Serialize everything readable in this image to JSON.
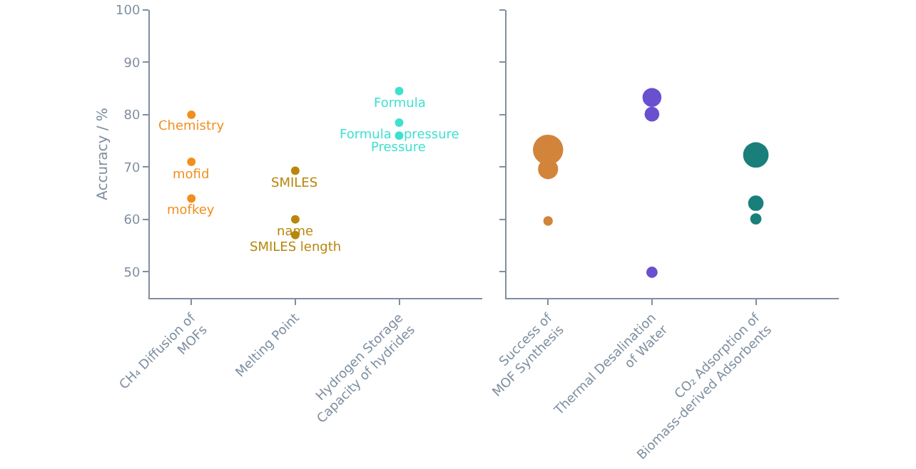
{
  "chart_data": [
    {
      "type": "scatter",
      "ylabel": "Accuracy / %",
      "categories": [
        "CH₄ Diffusion of\nMOFs",
        "Melting Point",
        "Hydrogen Storage\nCapacity of hydrides"
      ],
      "ylim": [
        45,
        100
      ],
      "yticks": [
        50,
        60,
        70,
        80,
        90,
        100
      ],
      "grid": false,
      "marker": "circle",
      "series": [
        {
          "color": "#f28e1c",
          "x": [
            "CH₄ Diffusion of\nMOFs",
            "CH₄ Diffusion of\nMOFs",
            "CH₄ Diffusion of\nMOFs"
          ],
          "values": [
            80,
            71,
            64
          ]
        },
        {
          "color": "#b8860b",
          "x": [
            "Melting Point",
            "Melting Point",
            "Melting Point"
          ],
          "values": [
            69.3,
            60,
            57
          ]
        },
        {
          "color": "#40e0d0",
          "x": [
            "Hydrogen Storage\nCapacity of hydrides",
            "Hydrogen Storage\nCapacity of hydrides",
            "Hydrogen Storage\nCapacity of hydrides"
          ],
          "values": [
            84.5,
            78.5,
            76
          ]
        }
      ],
      "annotations": [
        {
          "text": "Chemistry",
          "x": "CH₄ Diffusion of\nMOFs",
          "y": 80
        },
        {
          "text": "mofid",
          "x": "CH₄ Diffusion of\nMOFs",
          "y": 71
        },
        {
          "text": "mofkey",
          "x": "CH₄ Diffusion of\nMOFs",
          "y": 64
        },
        {
          "text": "SMILES",
          "x": "Melting Point",
          "y": 69.3
        },
        {
          "text": "name",
          "x": "Melting Point",
          "y": 60
        },
        {
          "text": "SMILES length",
          "x": "Melting Point",
          "y": 57
        },
        {
          "text": "Formula",
          "x": "Hydrogen Storage\nCapacity of hydrides",
          "y": 84.5
        },
        {
          "text": "Formula   pressure",
          "x": "Hydrogen Storage\nCapacity of hydrides",
          "y": 78.5
        },
        {
          "text": "Pressure",
          "x": "Hydrogen Storage\nCapacity of hydrides",
          "y": 76
        }
      ]
    },
    {
      "type": "bubble",
      "categories": [
        "Success of\nMOF Synthesis",
        "Thermal Desalination\nof Water",
        "CO₂ Adsorption of\nBiomass-derived Adsorbents"
      ],
      "ylim": [
        45,
        100
      ],
      "yticks": [
        50,
        60,
        70,
        80,
        90,
        100
      ],
      "tick_labels": "x",
      "grid": false,
      "marker": "circle",
      "series": [
        {
          "color": "#d2843a",
          "x": [
            "Success of\nMOF Synthesis",
            "Success of\nMOF Synthesis",
            "Success of\nMOF Synthesis"
          ],
          "values": [
            73.3,
            69.6,
            59.7
          ],
          "sizes": [
            1,
            0.44,
            0.1
          ]
        },
        {
          "color": "#6a4fcf",
          "x": [
            "Thermal Desalination\nof Water",
            "Thermal Desalination\nof Water",
            "Thermal Desalination\nof Water"
          ],
          "values": [
            83.3,
            80.1,
            49.9
          ],
          "sizes": [
            0.39,
            0.24,
            0.14
          ]
        },
        {
          "color": "#1a7f7a",
          "x": [
            "CO₂ Adsorption of\nBiomass-derived Adsorbents",
            "CO₂ Adsorption of\nBiomass-derived Adsorbents",
            "CO₂ Adsorption of\nBiomass-derived Adsorbents"
          ],
          "values": [
            72.3,
            63.1,
            60.1
          ],
          "sizes": [
            0.71,
            0.26,
            0.14
          ]
        }
      ]
    }
  ]
}
